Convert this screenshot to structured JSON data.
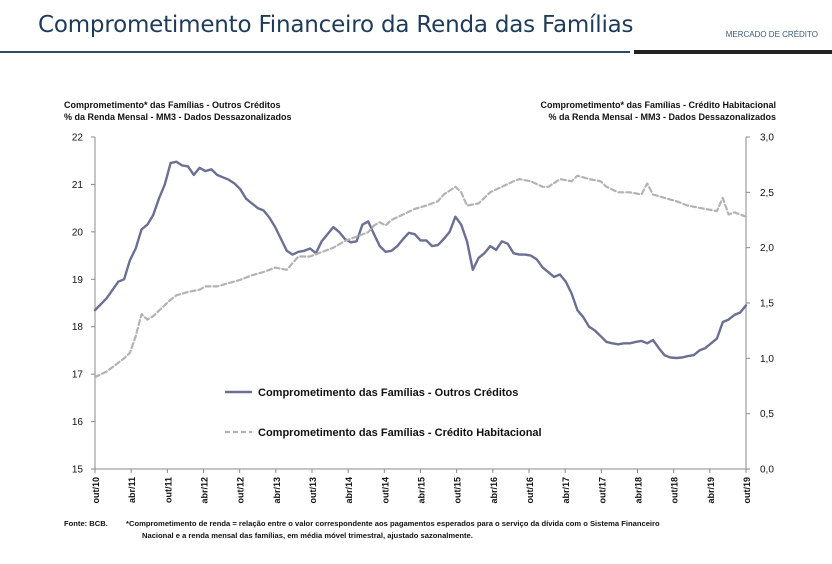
{
  "header": {
    "title": "Comprometimento Financeiro da Renda das Famílias",
    "section": "MERCADO DE CRÉDITO"
  },
  "colors": {
    "title": "#1f3b5a",
    "series_solid": "#6b6f93",
    "series_dashed": "#b3b3b3",
    "rule_blue": "#2e4a66",
    "rule_black": "#222222"
  },
  "chart_data": {
    "type": "line",
    "title_left": [
      "Comprometimento* das Famílias - Outros Créditos",
      "% da Renda Mensal - MM3 - Dados Dessazonalizados"
    ],
    "title_right": [
      "Comprometimento* das Famílias - Crédito Habitacional",
      "% da Renda Mensal - MM3 - Dados Dessazonalizados"
    ],
    "y_left": {
      "range": [
        15,
        22
      ],
      "ticks": [
        "15",
        "16",
        "17",
        "18",
        "19",
        "20",
        "21",
        "22"
      ]
    },
    "y_right": {
      "range": [
        0,
        3
      ],
      "ticks": [
        "0,0",
        "0,5",
        "1,0",
        "1,5",
        "2,0",
        "2,5",
        "3,0"
      ]
    },
    "x_ticks": [
      "out/10",
      "abr/11",
      "out/11",
      "abr/12",
      "out/12",
      "abr/13",
      "out/13",
      "abr/14",
      "out/14",
      "abr/15",
      "out/15",
      "abr/16",
      "out/16",
      "abr/17",
      "out/17",
      "abr/18",
      "out/18",
      "abr/19",
      "out/19"
    ],
    "series": [
      {
        "name": "Comprometimento das Famílias - Outros Créditos",
        "axis": "left",
        "style": "solid",
        "points": [
          [
            0,
            18.35
          ],
          [
            2,
            18.6
          ],
          [
            4,
            18.95
          ],
          [
            5,
            19.0
          ],
          [
            6,
            19.4
          ],
          [
            7,
            19.65
          ],
          [
            8,
            20.05
          ],
          [
            9,
            20.15
          ],
          [
            10,
            20.35
          ],
          [
            11,
            20.7
          ],
          [
            12,
            21.0
          ],
          [
            13,
            21.45
          ],
          [
            14,
            21.48
          ],
          [
            15,
            21.4
          ],
          [
            16,
            21.38
          ],
          [
            17,
            21.2
          ],
          [
            18,
            21.35
          ],
          [
            19,
            21.28
          ],
          [
            20,
            21.32
          ],
          [
            21,
            21.2
          ],
          [
            22,
            21.15
          ],
          [
            23,
            21.1
          ],
          [
            24,
            21.02
          ],
          [
            25,
            20.9
          ],
          [
            26,
            20.7
          ],
          [
            27,
            20.6
          ],
          [
            28,
            20.5
          ],
          [
            29,
            20.45
          ],
          [
            30,
            20.3
          ],
          [
            31,
            20.1
          ],
          [
            32,
            19.85
          ],
          [
            33,
            19.6
          ],
          [
            34,
            19.52
          ],
          [
            35,
            19.58
          ],
          [
            36,
            19.6
          ],
          [
            37,
            19.65
          ],
          [
            38,
            19.55
          ],
          [
            39,
            19.8
          ],
          [
            40,
            19.95
          ],
          [
            41,
            20.1
          ],
          [
            42,
            20.0
          ],
          [
            43,
            19.85
          ],
          [
            44,
            19.78
          ],
          [
            45,
            19.8
          ],
          [
            46,
            20.15
          ],
          [
            47,
            20.22
          ],
          [
            48,
            19.95
          ],
          [
            49,
            19.7
          ],
          [
            50,
            19.58
          ],
          [
            51,
            19.6
          ],
          [
            52,
            19.7
          ],
          [
            53,
            19.85
          ],
          [
            54,
            19.98
          ],
          [
            55,
            19.95
          ],
          [
            56,
            19.82
          ],
          [
            57,
            19.82
          ],
          [
            58,
            19.7
          ],
          [
            59,
            19.72
          ],
          [
            60,
            19.85
          ],
          [
            61,
            20.0
          ],
          [
            62,
            20.32
          ],
          [
            63,
            20.15
          ],
          [
            64,
            19.8
          ],
          [
            65,
            19.2
          ],
          [
            66,
            19.45
          ],
          [
            67,
            19.55
          ],
          [
            68,
            19.7
          ],
          [
            69,
            19.62
          ],
          [
            70,
            19.8
          ],
          [
            71,
            19.75
          ],
          [
            72,
            19.55
          ],
          [
            73,
            19.52
          ],
          [
            74,
            19.52
          ],
          [
            75,
            19.5
          ],
          [
            76,
            19.42
          ],
          [
            77,
            19.25
          ],
          [
            78,
            19.15
          ],
          [
            79,
            19.05
          ],
          [
            80,
            19.1
          ],
          [
            81,
            18.95
          ],
          [
            82,
            18.7
          ],
          [
            83,
            18.35
          ],
          [
            84,
            18.2
          ],
          [
            85,
            18.0
          ],
          [
            86,
            17.92
          ],
          [
            87,
            17.8
          ],
          [
            88,
            17.68
          ],
          [
            89,
            17.65
          ],
          [
            90,
            17.63
          ],
          [
            91,
            17.65
          ],
          [
            92,
            17.65
          ],
          [
            93,
            17.68
          ],
          [
            94,
            17.7
          ],
          [
            95,
            17.65
          ],
          [
            96,
            17.72
          ],
          [
            97,
            17.55
          ],
          [
            98,
            17.4
          ],
          [
            99,
            17.35
          ],
          [
            100,
            17.34
          ],
          [
            101,
            17.35
          ],
          [
            102,
            17.38
          ],
          [
            103,
            17.4
          ],
          [
            104,
            17.5
          ],
          [
            105,
            17.55
          ],
          [
            106,
            17.65
          ],
          [
            107,
            17.75
          ],
          [
            108,
            18.1
          ],
          [
            109,
            18.15
          ],
          [
            110,
            18.25
          ],
          [
            111,
            18.3
          ],
          [
            112,
            18.45
          ]
        ]
      },
      {
        "name": "Comprometimento das Famílias - Crédito Habitacional",
        "axis": "right",
        "style": "dashed",
        "points": [
          [
            0,
            0.83
          ],
          [
            2,
            0.88
          ],
          [
            3,
            0.92
          ],
          [
            5,
            1.0
          ],
          [
            6,
            1.05
          ],
          [
            7,
            1.2
          ],
          [
            8,
            1.4
          ],
          [
            9,
            1.35
          ],
          [
            10,
            1.38
          ],
          [
            11,
            1.43
          ],
          [
            12,
            1.48
          ],
          [
            13,
            1.53
          ],
          [
            14,
            1.57
          ],
          [
            16,
            1.6
          ],
          [
            18,
            1.62
          ],
          [
            19,
            1.65
          ],
          [
            21,
            1.65
          ],
          [
            23,
            1.68
          ],
          [
            25,
            1.71
          ],
          [
            27,
            1.75
          ],
          [
            29,
            1.78
          ],
          [
            31,
            1.82
          ],
          [
            33,
            1.8
          ],
          [
            35,
            1.92
          ],
          [
            37,
            1.92
          ],
          [
            39,
            1.96
          ],
          [
            41,
            2.0
          ],
          [
            43,
            2.06
          ],
          [
            45,
            2.1
          ],
          [
            47,
            2.14
          ],
          [
            48,
            2.2
          ],
          [
            49,
            2.23
          ],
          [
            50,
            2.2
          ],
          [
            51,
            2.25
          ],
          [
            53,
            2.3
          ],
          [
            55,
            2.35
          ],
          [
            57,
            2.38
          ],
          [
            59,
            2.42
          ],
          [
            60,
            2.48
          ],
          [
            62,
            2.55
          ],
          [
            63,
            2.5
          ],
          [
            64,
            2.38
          ],
          [
            66,
            2.4
          ],
          [
            68,
            2.5
          ],
          [
            70,
            2.55
          ],
          [
            72,
            2.6
          ],
          [
            73,
            2.62
          ],
          [
            75,
            2.6
          ],
          [
            77,
            2.55
          ],
          [
            78,
            2.55
          ],
          [
            80,
            2.62
          ],
          [
            82,
            2.6
          ],
          [
            83,
            2.65
          ],
          [
            85,
            2.62
          ],
          [
            87,
            2.6
          ],
          [
            88,
            2.55
          ],
          [
            90,
            2.5
          ],
          [
            92,
            2.5
          ],
          [
            94,
            2.48
          ],
          [
            95,
            2.58
          ],
          [
            96,
            2.48
          ],
          [
            98,
            2.45
          ],
          [
            100,
            2.42
          ],
          [
            102,
            2.38
          ],
          [
            104,
            2.36
          ],
          [
            106,
            2.34
          ],
          [
            107,
            2.33
          ],
          [
            108,
            2.45
          ],
          [
            109,
            2.3
          ],
          [
            110,
            2.32
          ],
          [
            112,
            2.28
          ]
        ]
      }
    ],
    "x_range": [
      0,
      112
    ],
    "legend": [
      "Comprometimento das Famílias - Outros Créditos",
      "Comprometimento das Famílias - Crédito Habitacional"
    ],
    "legend_position": "bottom-left-inside"
  },
  "footer": {
    "source": "Fonte: BCB.",
    "note_line1": "*Comprometimento de renda = relação entre o valor correspondente aos pagamentos esperados para o serviço da dívida com o Sistema Financeiro",
    "note_line2": "Nacional e a renda mensal das famílias, em média móvel trimestral, ajustado sazonalmente."
  }
}
